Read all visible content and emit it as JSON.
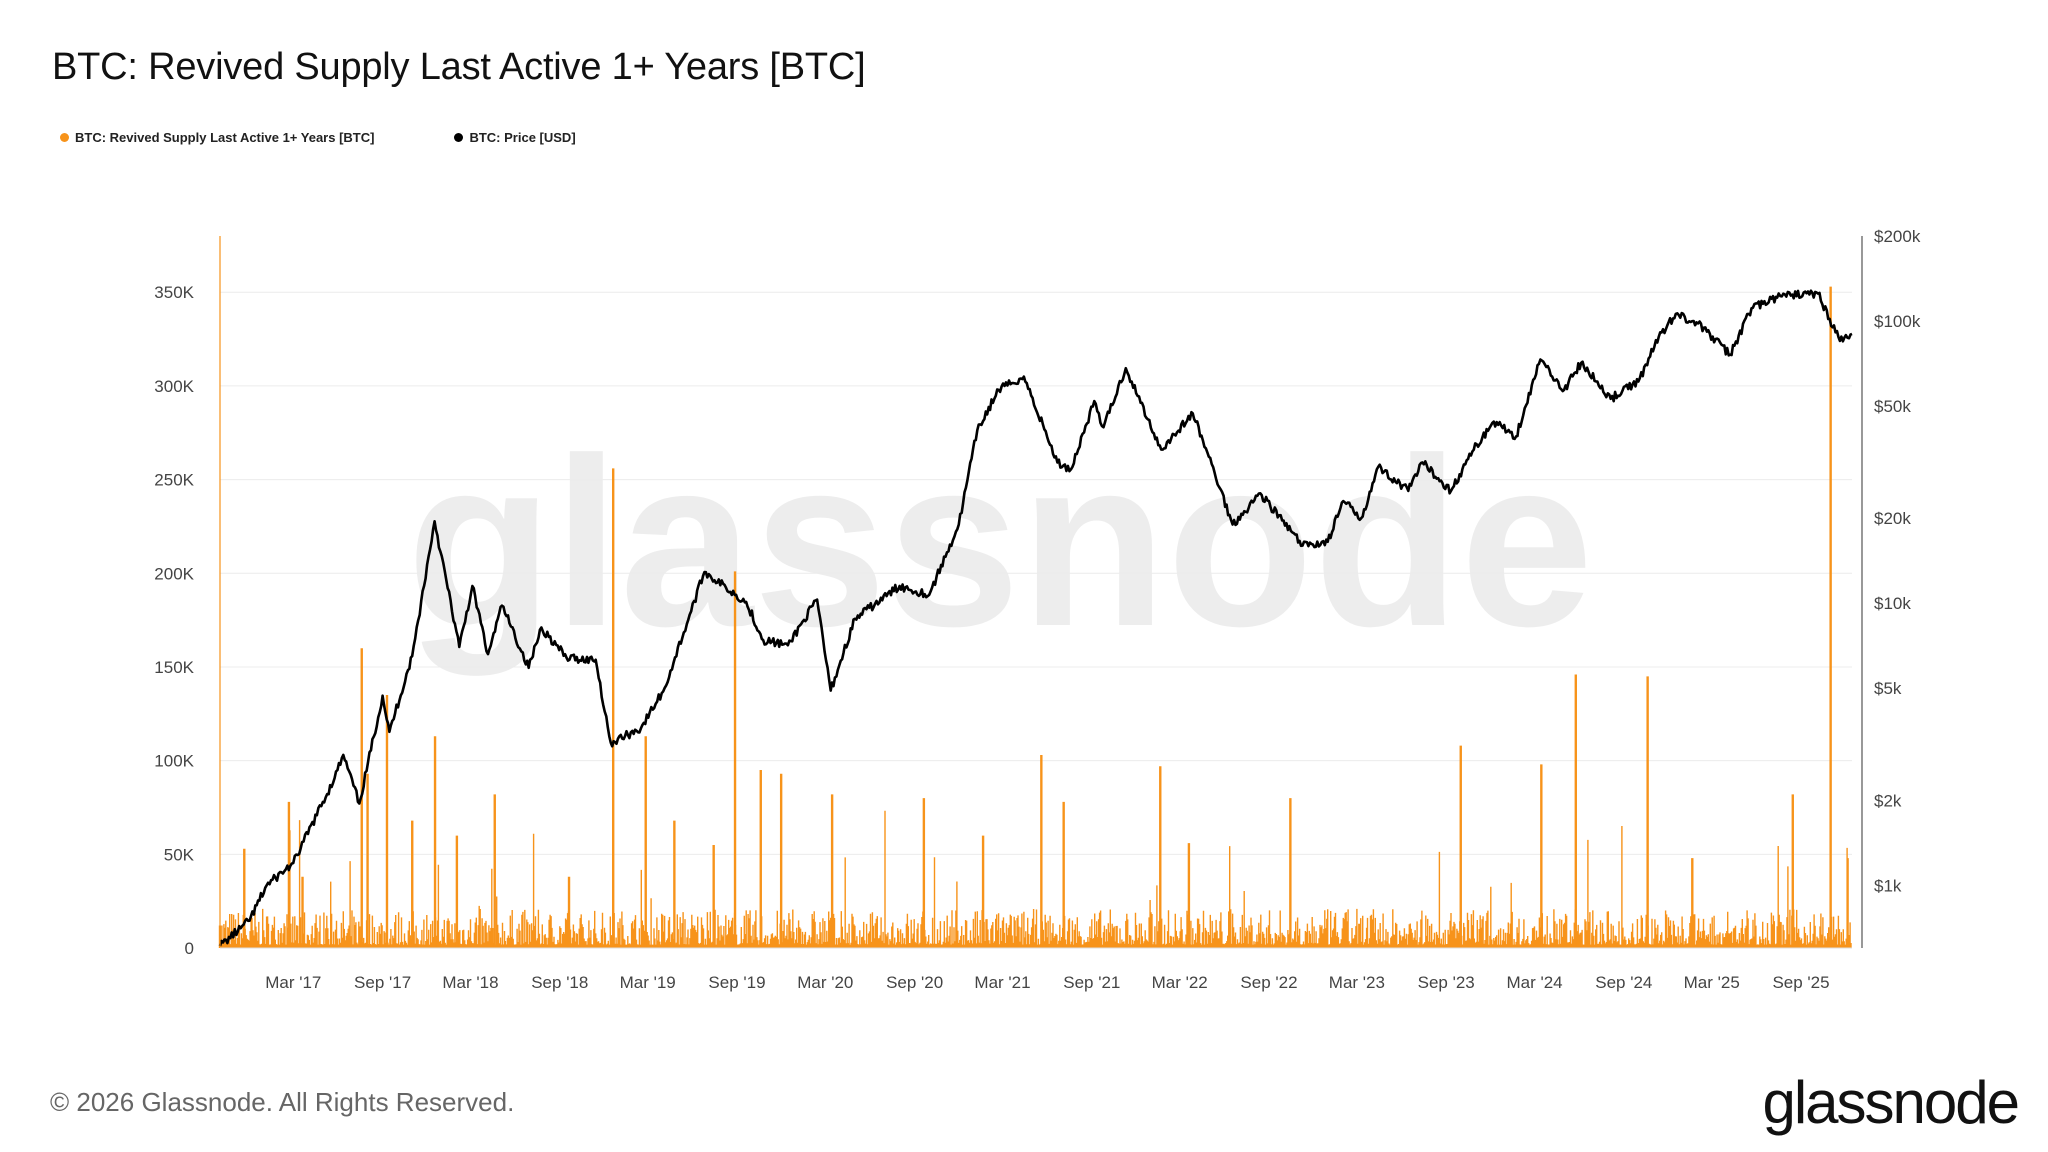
{
  "header": {
    "title": "BTC: Revived Supply Last Active 1+ Years [BTC]"
  },
  "legend": {
    "items": [
      {
        "label": "BTC: Revived Supply Last Active 1+ Years [BTC]",
        "color": "#f7931a"
      },
      {
        "label": "BTC: Price [USD]",
        "color": "#000000"
      }
    ]
  },
  "watermark": "glassnode",
  "footer": {
    "copyright": "© 2026 Glassnode. All Rights Reserved.",
    "brand": "glassnode"
  },
  "chart_data": {
    "type": "bar+line",
    "x_range": [
      "2016-10-01",
      "2025-12-15"
    ],
    "x_ticks": [
      "Mar '17",
      "Sep '17",
      "Mar '18",
      "Sep '18",
      "Mar '19",
      "Sep '19",
      "Mar '20",
      "Sep '20",
      "Mar '21",
      "Sep '21",
      "Mar '22",
      "Sep '22",
      "Mar '23",
      "Sep '23",
      "Mar '24",
      "Sep '24",
      "Mar '25",
      "Sep '25"
    ],
    "y_left": {
      "ticks": [
        0,
        50000,
        100000,
        150000,
        200000,
        250000,
        300000,
        350000
      ],
      "tick_labels": [
        "0",
        "50K",
        "100K",
        "150K",
        "200K",
        "250K",
        "300K",
        "350K"
      ],
      "range": [
        0,
        380000
      ]
    },
    "y_right": {
      "scale": "log",
      "ticks": [
        1000,
        2000,
        5000,
        10000,
        20000,
        50000,
        100000,
        200000
      ],
      "tick_labels": [
        "$1k",
        "$2k",
        "$5k",
        "$10k",
        "$20k",
        "$50k",
        "$100k",
        "$200k"
      ]
    },
    "grid": true,
    "series": [
      {
        "name": "BTC: Revived Supply Last Active 1+ Years [BTC]",
        "axis": "left",
        "color": "#f7931a",
        "spikes": [
          [
            "2016-10-01",
            12000
          ],
          [
            "2016-11-20",
            53000
          ],
          [
            "2017-02-20",
            78000
          ],
          [
            "2017-03-20",
            38000
          ],
          [
            "2017-07-20",
            160000
          ],
          [
            "2017-08-01",
            93000
          ],
          [
            "2017-09-10",
            135000
          ],
          [
            "2017-11-01",
            68000
          ],
          [
            "2017-12-18",
            113000
          ],
          [
            "2018-02-01",
            60000
          ],
          [
            "2018-04-20",
            82000
          ],
          [
            "2018-09-20",
            38000
          ],
          [
            "2018-12-20",
            256000
          ],
          [
            "2019-02-25",
            113000
          ],
          [
            "2019-04-25",
            68000
          ],
          [
            "2019-07-15",
            55000
          ],
          [
            "2019-08-28",
            201000
          ],
          [
            "2019-10-20",
            95000
          ],
          [
            "2019-12-01",
            93000
          ],
          [
            "2020-03-15",
            82000
          ],
          [
            "2020-09-20",
            80000
          ],
          [
            "2021-01-20",
            60000
          ],
          [
            "2021-05-20",
            103000
          ],
          [
            "2021-07-05",
            78000
          ],
          [
            "2022-01-20",
            97000
          ],
          [
            "2022-03-20",
            56000
          ],
          [
            "2022-10-15",
            80000
          ],
          [
            "2023-10-01",
            108000
          ],
          [
            "2024-03-15",
            98000
          ],
          [
            "2024-05-25",
            146000
          ],
          [
            "2024-10-20",
            145000
          ],
          [
            "2025-01-20",
            48000
          ],
          [
            "2025-08-15",
            82000
          ],
          [
            "2025-11-01",
            353000
          ]
        ],
        "baseline_typical": 12000
      },
      {
        "name": "BTC: Price [USD]",
        "axis": "right",
        "color": "#000000",
        "points": [
          [
            "2016-10-01",
            610
          ],
          [
            "2016-12-01",
            750
          ],
          [
            "2017-01-05",
            1000
          ],
          [
            "2017-03-01",
            1200
          ],
          [
            "2017-05-25",
            2400
          ],
          [
            "2017-06-12",
            2900
          ],
          [
            "2017-07-15",
            1950
          ],
          [
            "2017-09-01",
            4700
          ],
          [
            "2017-09-15",
            3500
          ],
          [
            "2017-11-01",
            6500
          ],
          [
            "2017-12-17",
            19500
          ],
          [
            "2018-02-06",
            7000
          ],
          [
            "2018-03-05",
            11500
          ],
          [
            "2018-04-06",
            6600
          ],
          [
            "2018-05-05",
            9800
          ],
          [
            "2018-06-29",
            5900
          ],
          [
            "2018-07-25",
            8200
          ],
          [
            "2018-09-15",
            6400
          ],
          [
            "2018-11-14",
            6300
          ],
          [
            "2018-12-15",
            3200
          ],
          [
            "2019-02-15",
            3600
          ],
          [
            "2019-04-05",
            5000
          ],
          [
            "2019-06-26",
            12900
          ],
          [
            "2019-09-20",
            10100
          ],
          [
            "2019-10-25",
            7400
          ],
          [
            "2019-12-15",
            7100
          ],
          [
            "2020-02-13",
            10300
          ],
          [
            "2020-03-12",
            4900
          ],
          [
            "2020-05-01",
            8800
          ],
          [
            "2020-08-01",
            11500
          ],
          [
            "2020-10-01",
            10700
          ],
          [
            "2020-12-01",
            19000
          ],
          [
            "2021-01-08",
            41000
          ],
          [
            "2021-02-21",
            57000
          ],
          [
            "2021-04-14",
            63500
          ],
          [
            "2021-06-22",
            31500
          ],
          [
            "2021-07-20",
            29800
          ],
          [
            "2021-09-06",
            52000
          ],
          [
            "2021-09-25",
            42000
          ],
          [
            "2021-11-10",
            68000
          ],
          [
            "2022-01-22",
            35000
          ],
          [
            "2022-03-28",
            47000
          ],
          [
            "2022-05-12",
            29000
          ],
          [
            "2022-06-18",
            19000
          ],
          [
            "2022-08-14",
            24500
          ],
          [
            "2022-11-09",
            16000
          ],
          [
            "2022-12-31",
            16500
          ],
          [
            "2023-02-01",
            23000
          ],
          [
            "2023-03-10",
            20000
          ],
          [
            "2023-04-14",
            30400
          ],
          [
            "2023-06-15",
            25000
          ],
          [
            "2023-07-14",
            31500
          ],
          [
            "2023-09-11",
            25000
          ],
          [
            "2023-10-25",
            34500
          ],
          [
            "2023-12-08",
            44000
          ],
          [
            "2024-01-23",
            39000
          ],
          [
            "2024-03-13",
            73000
          ],
          [
            "2024-05-01",
            57000
          ],
          [
            "2024-06-05",
            71000
          ],
          [
            "2024-08-05",
            53000
          ],
          [
            "2024-10-01",
            61000
          ],
          [
            "2024-11-12",
            88000
          ],
          [
            "2024-12-17",
            106000
          ],
          [
            "2025-02-01",
            98000
          ],
          [
            "2025-04-08",
            76000
          ],
          [
            "2025-05-22",
            111000
          ],
          [
            "2025-07-14",
            121000
          ],
          [
            "2025-08-14",
            124000
          ],
          [
            "2025-10-06",
            125000
          ],
          [
            "2025-11-20",
            85000
          ],
          [
            "2025-12-15",
            90000
          ]
        ]
      }
    ]
  }
}
